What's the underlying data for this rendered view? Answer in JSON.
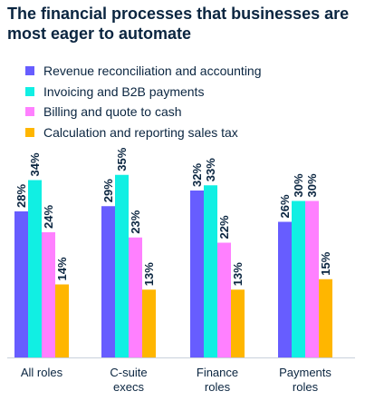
{
  "chart_data": {
    "type": "bar",
    "title": "The financial processes that businesses are most eager to automate",
    "categories": [
      [
        "All roles"
      ],
      [
        "C-suite",
        "execs"
      ],
      [
        "Finance",
        "roles"
      ],
      [
        "Payments",
        "roles"
      ]
    ],
    "series": [
      {
        "name": "Revenue reconciliation and accounting",
        "color": "#675dff",
        "values": [
          28,
          29,
          32,
          26
        ]
      },
      {
        "name": "Invoicing and B2B payments",
        "color": "#11efe3",
        "values": [
          34,
          35,
          33,
          30
        ]
      },
      {
        "name": "Billing and quote to cash",
        "color": "#ff80ff",
        "values": [
          24,
          23,
          22,
          30
        ]
      },
      {
        "name": "Calculation and reporting sales tax",
        "color": "#ffb600",
        "values": [
          14,
          13,
          13,
          15
        ]
      }
    ],
    "value_suffix": "%",
    "ylim": [
      0,
      40
    ],
    "grid": false,
    "legend_position": "top-left",
    "xlabel": "",
    "ylabel": ""
  }
}
